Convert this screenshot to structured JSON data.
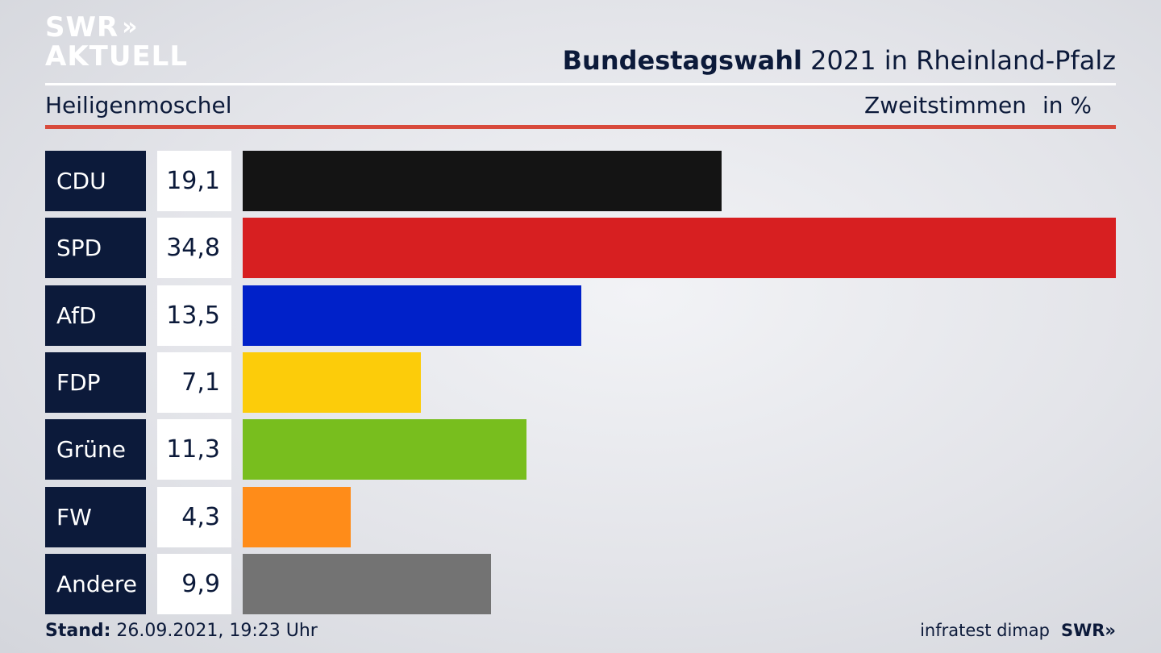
{
  "logo": {
    "line1": "SWR",
    "chevrons": "»",
    "line2": "AKTUELL"
  },
  "header": {
    "title_bold": "Bundestagswahl",
    "title_rest": " 2021 in Rheinland-Pfalz",
    "region": "Heiligenmoschel",
    "measure": "Zweitstimmen",
    "unit": "in %"
  },
  "chart_data": {
    "type": "bar",
    "orientation": "horizontal",
    "categories": [
      "CDU",
      "SPD",
      "AfD",
      "FDP",
      "Grüne",
      "FW",
      "Andere"
    ],
    "values": [
      19.1,
      34.8,
      13.5,
      7.1,
      11.3,
      4.3,
      9.9
    ],
    "value_labels": [
      "19,1",
      "34,8",
      "13,5",
      "7,1",
      "11,3",
      "4,3",
      "9,9"
    ],
    "colors": [
      "#141414",
      "#d71f21",
      "#0021c9",
      "#fccc0a",
      "#78be1e",
      "#ff8c19",
      "#737373"
    ],
    "title": "Bundestagswahl 2021 in Rheinland-Pfalz",
    "xlabel": "",
    "ylabel": "",
    "xlim": [
      0,
      34.8
    ],
    "grid": false
  },
  "footer": {
    "stand_label": "Stand:",
    "stand_value": " 26.09.2021, 19:23 Uhr",
    "source": "infratest dimap",
    "brand": "SWR»"
  }
}
